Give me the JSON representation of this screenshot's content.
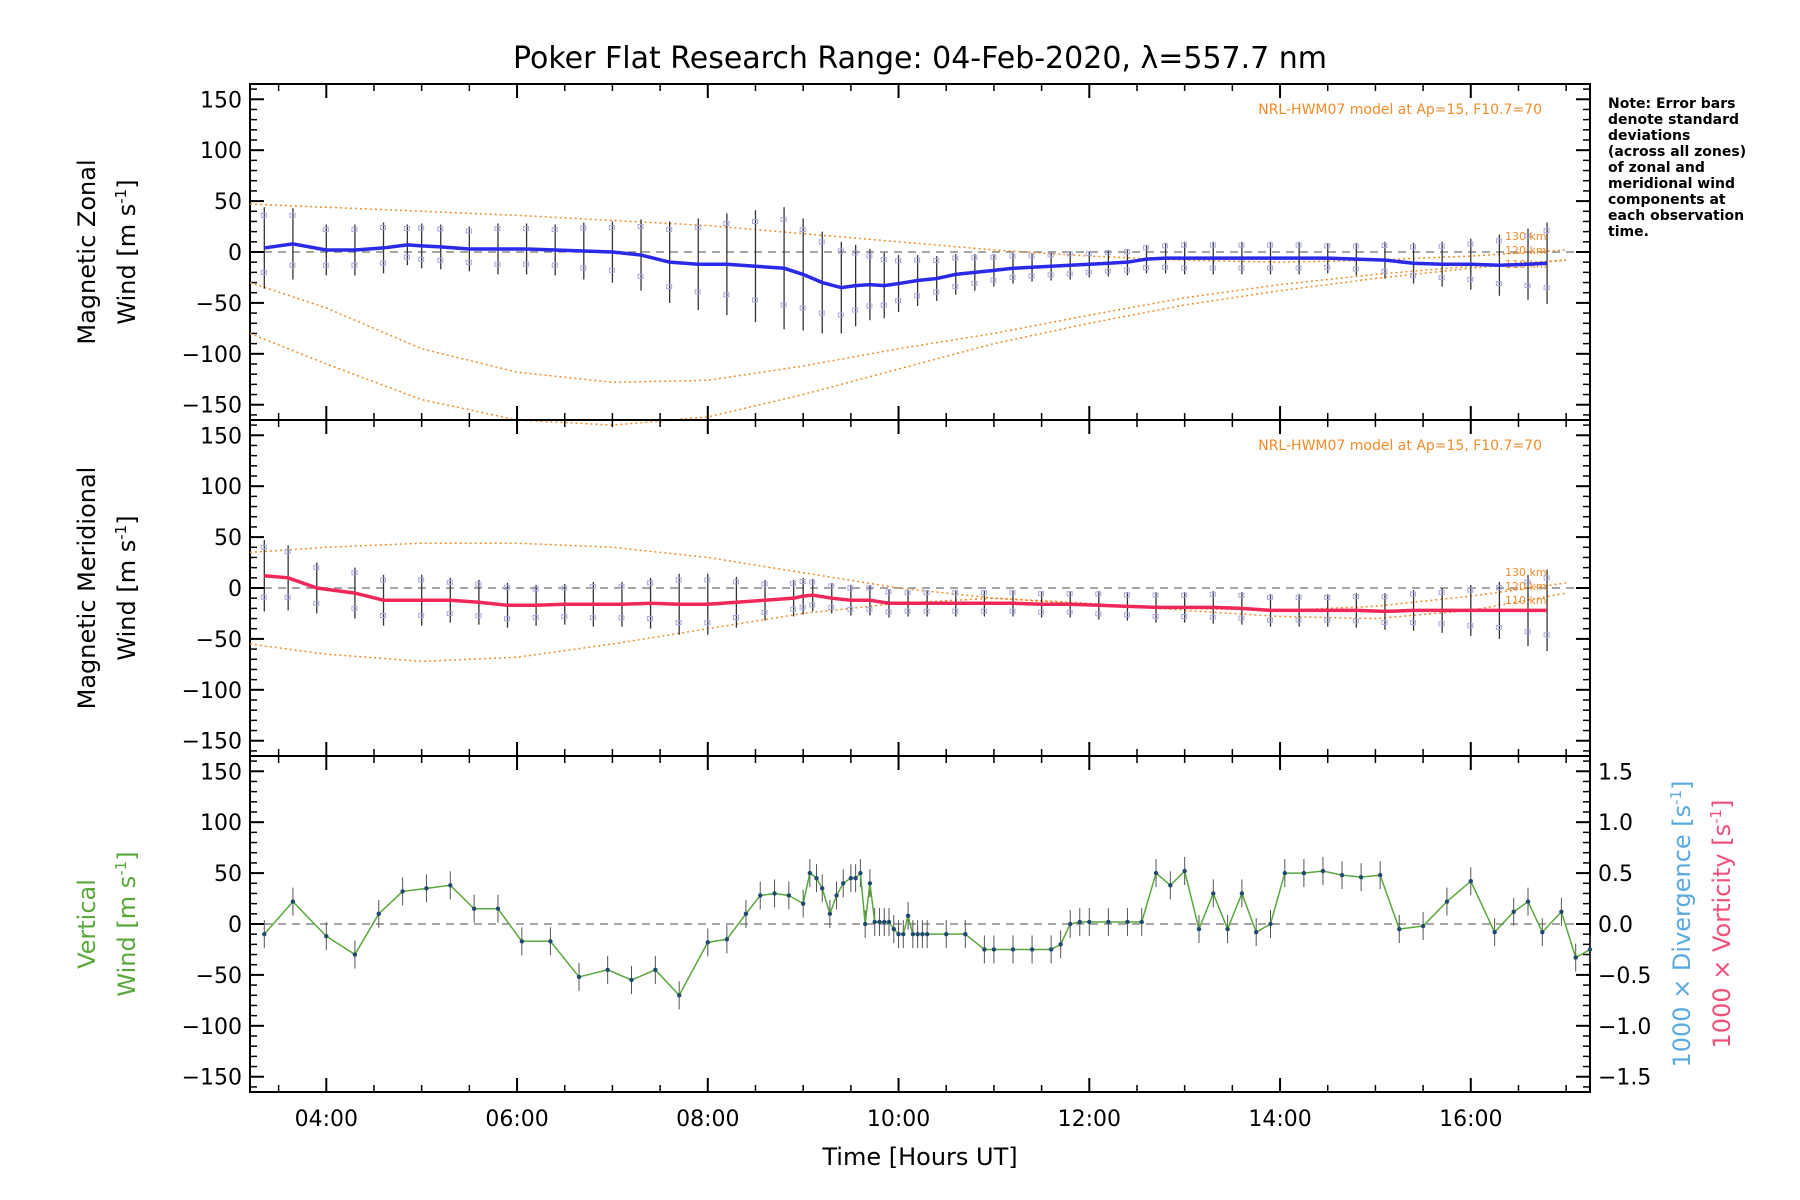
{
  "title": "Poker Flat Research Range: 04-Feb-2020, λ=557.7 nm",
  "note_lines": [
    "Note: Error bars",
    "denote standard",
    "deviations",
    "(across all zones)",
    "of zonal and",
    "meridional wind",
    "components at",
    "each observation",
    "time."
  ],
  "colors": {
    "zonal_line": "#2a2ae8",
    "zonal_line_light": "#5aaae0",
    "meridional_line": "#f0285a",
    "vertical_line": "#5aa83c",
    "vertical_points": "#1f4a6e",
    "model": "#f08c2a",
    "zone_marks": "#a8a8e0",
    "errorbar": "#333333",
    "divergence_label": "#5aaae0",
    "vorticity_label": "#f0507a"
  },
  "chart_data": [
    {
      "type": "line",
      "panel": "zonal",
      "ylabel_line1": "Magnetic Zonal",
      "ylabel_line2_prefix": "Wind ",
      "ylabel_units": "[m s",
      "ylabel_units_sup": "-1",
      "ylabel_units_close": "]",
      "ylim": [
        -165,
        165
      ],
      "yticks": [
        -150,
        -100,
        -50,
        0,
        50,
        100,
        150
      ],
      "model_label": "NRL-HWM07 model at Ap=15, F10.7=70",
      "altitude_labels": [
        "130 km",
        "120 km",
        "110 km"
      ],
      "series": [
        {
          "x": [
            3.35,
            3.65,
            4.0,
            4.3,
            4.6,
            4.85,
            5.0,
            5.2,
            5.5,
            5.8,
            6.1,
            6.4,
            6.7,
            7.0,
            7.3,
            7.6,
            7.9,
            8.2,
            8.5,
            8.8,
            9.0,
            9.2,
            9.4,
            9.55,
            9.7,
            9.85,
            10.0,
            10.2,
            10.4,
            10.6,
            10.8,
            11.0,
            11.2,
            11.4,
            11.6,
            11.8,
            12.0,
            12.2,
            12.4,
            12.6,
            12.8,
            13.0,
            13.3,
            13.6,
            13.9,
            14.2,
            14.5,
            14.8,
            15.1,
            15.4,
            15.7,
            16.0,
            16.3,
            16.6,
            16.8
          ],
          "y": [
            4,
            8,
            2,
            2,
            4,
            7,
            6,
            5,
            3,
            3,
            3,
            2,
            1,
            0,
            -3,
            -10,
            -12,
            -12,
            -14,
            -16,
            -22,
            -30,
            -35,
            -33,
            -32,
            -33,
            -31,
            -28,
            -26,
            -22,
            -20,
            -18,
            -16,
            -15,
            -14,
            -13,
            -12,
            -11,
            -10,
            -7,
            -6,
            -6,
            -6,
            -6,
            -6,
            -6,
            -6,
            -7,
            -8,
            -11,
            -12,
            -12,
            -13,
            -12,
            -11
          ],
          "errors": [
            40,
            35,
            25,
            25,
            25,
            20,
            22,
            22,
            22,
            25,
            25,
            25,
            28,
            30,
            35,
            40,
            45,
            50,
            55,
            60,
            55,
            50,
            45,
            40,
            35,
            32,
            28,
            25,
            22,
            20,
            18,
            16,
            15,
            14,
            14,
            14,
            13,
            13,
            13,
            14,
            15,
            16,
            16,
            16,
            16,
            16,
            15,
            16,
            18,
            20,
            22,
            25,
            30,
            35,
            40
          ]
        }
      ],
      "model_curves": [
        {
          "x": [
            3.2,
            4.0,
            5.0,
            6.0,
            7.0,
            8.0,
            9.0,
            10.0,
            11.0,
            12.0,
            13.0,
            14.0,
            15.0,
            16.0,
            17.0
          ],
          "y": [
            47,
            44,
            40,
            36,
            31,
            26,
            18,
            10,
            2,
            -4,
            -8,
            -10,
            -8,
            -4,
            2
          ]
        },
        {
          "x": [
            3.2,
            4.0,
            5.0,
            6.0,
            7.0,
            8.0,
            9.0,
            10.0,
            11.0,
            12.0,
            13.0,
            14.0,
            15.0,
            16.0,
            17.0
          ],
          "y": [
            -30,
            -55,
            -95,
            -118,
            -128,
            -126,
            -112,
            -95,
            -80,
            -62,
            -45,
            -32,
            -22,
            -14,
            -8
          ]
        },
        {
          "x": [
            3.2,
            4.0,
            5.0,
            6.0,
            7.0,
            8.0,
            9.0,
            10.0,
            11.0,
            12.0,
            13.0,
            14.0,
            15.0,
            16.0,
            17.0
          ],
          "y": [
            -80,
            -110,
            -145,
            -165,
            -170,
            -162,
            -140,
            -115,
            -90,
            -70,
            -52,
            -38,
            -26,
            -16,
            -8
          ]
        }
      ]
    },
    {
      "type": "line",
      "panel": "meridional",
      "ylabel_line1": "Magnetic Meridional",
      "ylabel_line2_prefix": "Wind ",
      "ylabel_units": "[m s",
      "ylabel_units_sup": "-1",
      "ylabel_units_close": "]",
      "ylim": [
        -165,
        165
      ],
      "yticks": [
        -150,
        -100,
        -50,
        0,
        50,
        100,
        150
      ],
      "model_label": "NRL-HWM07 model at Ap=15, F10.7=70",
      "altitude_labels": [
        "130 km",
        "120 km",
        "110 km"
      ],
      "series": [
        {
          "x": [
            3.35,
            3.6,
            3.9,
            4.3,
            4.6,
            5.0,
            5.3,
            5.6,
            5.9,
            6.2,
            6.5,
            6.8,
            7.1,
            7.4,
            7.7,
            8.0,
            8.3,
            8.6,
            8.9,
            9.0,
            9.1,
            9.3,
            9.5,
            9.7,
            9.9,
            10.1,
            10.3,
            10.6,
            10.9,
            11.2,
            11.5,
            11.8,
            12.1,
            12.4,
            12.7,
            13.0,
            13.3,
            13.6,
            13.9,
            14.2,
            14.5,
            14.8,
            15.1,
            15.4,
            15.7,
            16.0,
            16.3,
            16.6,
            16.8
          ],
          "y": [
            12,
            10,
            0,
            -5,
            -12,
            -12,
            -12,
            -14,
            -17,
            -17,
            -16,
            -16,
            -16,
            -15,
            -16,
            -16,
            -14,
            -12,
            -10,
            -8,
            -7,
            -10,
            -12,
            -12,
            -15,
            -15,
            -15,
            -15,
            -15,
            -15,
            -16,
            -16,
            -17,
            -18,
            -19,
            -19,
            -19,
            -20,
            -22,
            -22,
            -22,
            -22,
            -23,
            -22,
            -22,
            -22,
            -22,
            -22,
            -22
          ],
          "errors": [
            35,
            32,
            25,
            25,
            25,
            25,
            22,
            22,
            22,
            20,
            20,
            22,
            22,
            25,
            30,
            30,
            25,
            20,
            18,
            18,
            16,
            15,
            15,
            15,
            14,
            13,
            13,
            13,
            13,
            13,
            13,
            13,
            14,
            14,
            15,
            15,
            16,
            16,
            16,
            16,
            16,
            17,
            18,
            20,
            22,
            25,
            28,
            35,
            40
          ]
        }
      ],
      "model_curves": [
        {
          "x": [
            3.2,
            4.0,
            5.0,
            6.0,
            7.0,
            8.0,
            9.0,
            10.0,
            11.0,
            12.0,
            13.0,
            14.0,
            15.0,
            16.0,
            17.0
          ],
          "y": [
            35,
            40,
            44,
            44,
            40,
            30,
            15,
            0,
            -10,
            -16,
            -20,
            -22,
            -18,
            -8,
            5
          ]
        },
        {
          "x": [
            3.2,
            4.0,
            5.0,
            6.0,
            7.0,
            8.0,
            9.0,
            10.0,
            11.0,
            12.0,
            13.0,
            14.0,
            15.0,
            16.0,
            17.0
          ],
          "y": [
            -55,
            -65,
            -72,
            -68,
            -55,
            -40,
            -25,
            -15,
            -10,
            -15,
            -22,
            -28,
            -30,
            -22,
            -5
          ]
        }
      ]
    },
    {
      "type": "line",
      "panel": "vertical",
      "ylabel_line1": "Vertical",
      "ylabel_line2_prefix": "Wind ",
      "ylabel_units": "[m s",
      "ylabel_units_sup": "-1",
      "ylabel_units_close": "]",
      "ylim": [
        -165,
        165
      ],
      "yticks": [
        -150,
        -100,
        -50,
        0,
        50,
        100,
        150
      ],
      "right_ylim": [
        -1.65,
        1.65
      ],
      "right_yticks": [
        -1.5,
        -1.0,
        -0.5,
        0.0,
        0.5,
        1.0,
        1.5
      ],
      "right_ytick_labels": [
        "−1.5",
        "−1.0",
        "−0.5",
        "0.0",
        "0.5",
        "1.0",
        "1.5"
      ],
      "right_label_div": "1000 × Divergence [s",
      "right_label_vort": "1000 × Vorticity [s",
      "right_label_sup": "-1",
      "right_label_close": "]",
      "xlabel": "Time [Hours UT]",
      "xlim": [
        3.2,
        17.25
      ],
      "xticks": [
        4,
        6,
        8,
        10,
        12,
        14,
        16
      ],
      "xtick_labels": [
        "04:00",
        "06:00",
        "08:00",
        "10:00",
        "12:00",
        "14:00",
        "16:00"
      ],
      "series": [
        {
          "x": [
            3.35,
            3.65,
            4.0,
            4.3,
            4.55,
            4.8,
            5.05,
            5.3,
            5.55,
            5.8,
            6.05,
            6.35,
            6.65,
            6.95,
            7.2,
            7.45,
            7.7,
            8.0,
            8.2,
            8.4,
            8.55,
            8.7,
            8.85,
            9.0,
            9.07,
            9.14,
            9.2,
            9.28,
            9.35,
            9.42,
            9.5,
            9.55,
            9.6,
            9.65,
            9.7,
            9.75,
            9.8,
            9.85,
            9.9,
            9.95,
            10.0,
            10.05,
            10.1,
            10.15,
            10.2,
            10.25,
            10.3,
            10.5,
            10.7,
            10.9,
            11.0,
            11.2,
            11.4,
            11.6,
            11.7,
            11.8,
            11.9,
            12.0,
            12.2,
            12.4,
            12.55,
            12.7,
            12.85,
            13.0,
            13.15,
            13.3,
            13.45,
            13.6,
            13.75,
            13.9,
            14.05,
            14.25,
            14.45,
            14.65,
            14.85,
            15.05,
            15.25,
            15.5,
            15.75,
            16.0,
            16.25,
            16.45,
            16.6,
            16.75,
            16.95,
            17.1,
            17.25
          ],
          "y": [
            -10,
            22,
            -12,
            -30,
            10,
            32,
            35,
            38,
            15,
            15,
            -17,
            -17,
            -52,
            -45,
            -55,
            -45,
            -70,
            -18,
            -15,
            10,
            28,
            30,
            28,
            20,
            50,
            45,
            35,
            10,
            28,
            40,
            45,
            45,
            50,
            0,
            40,
            2,
            2,
            2,
            2,
            -5,
            -10,
            -10,
            8,
            -10,
            -10,
            -10,
            -10,
            -10,
            -10,
            -25,
            -25,
            -25,
            -25,
            -25,
            -20,
            0,
            2,
            2,
            2,
            2,
            2,
            50,
            38,
            52,
            -5,
            30,
            -5,
            30,
            -8,
            0,
            50,
            50,
            52,
            48,
            46,
            48,
            -5,
            -2,
            22,
            42,
            -8,
            12,
            22,
            -8,
            12,
            -33,
            -25
          ]
        }
      ]
    }
  ]
}
